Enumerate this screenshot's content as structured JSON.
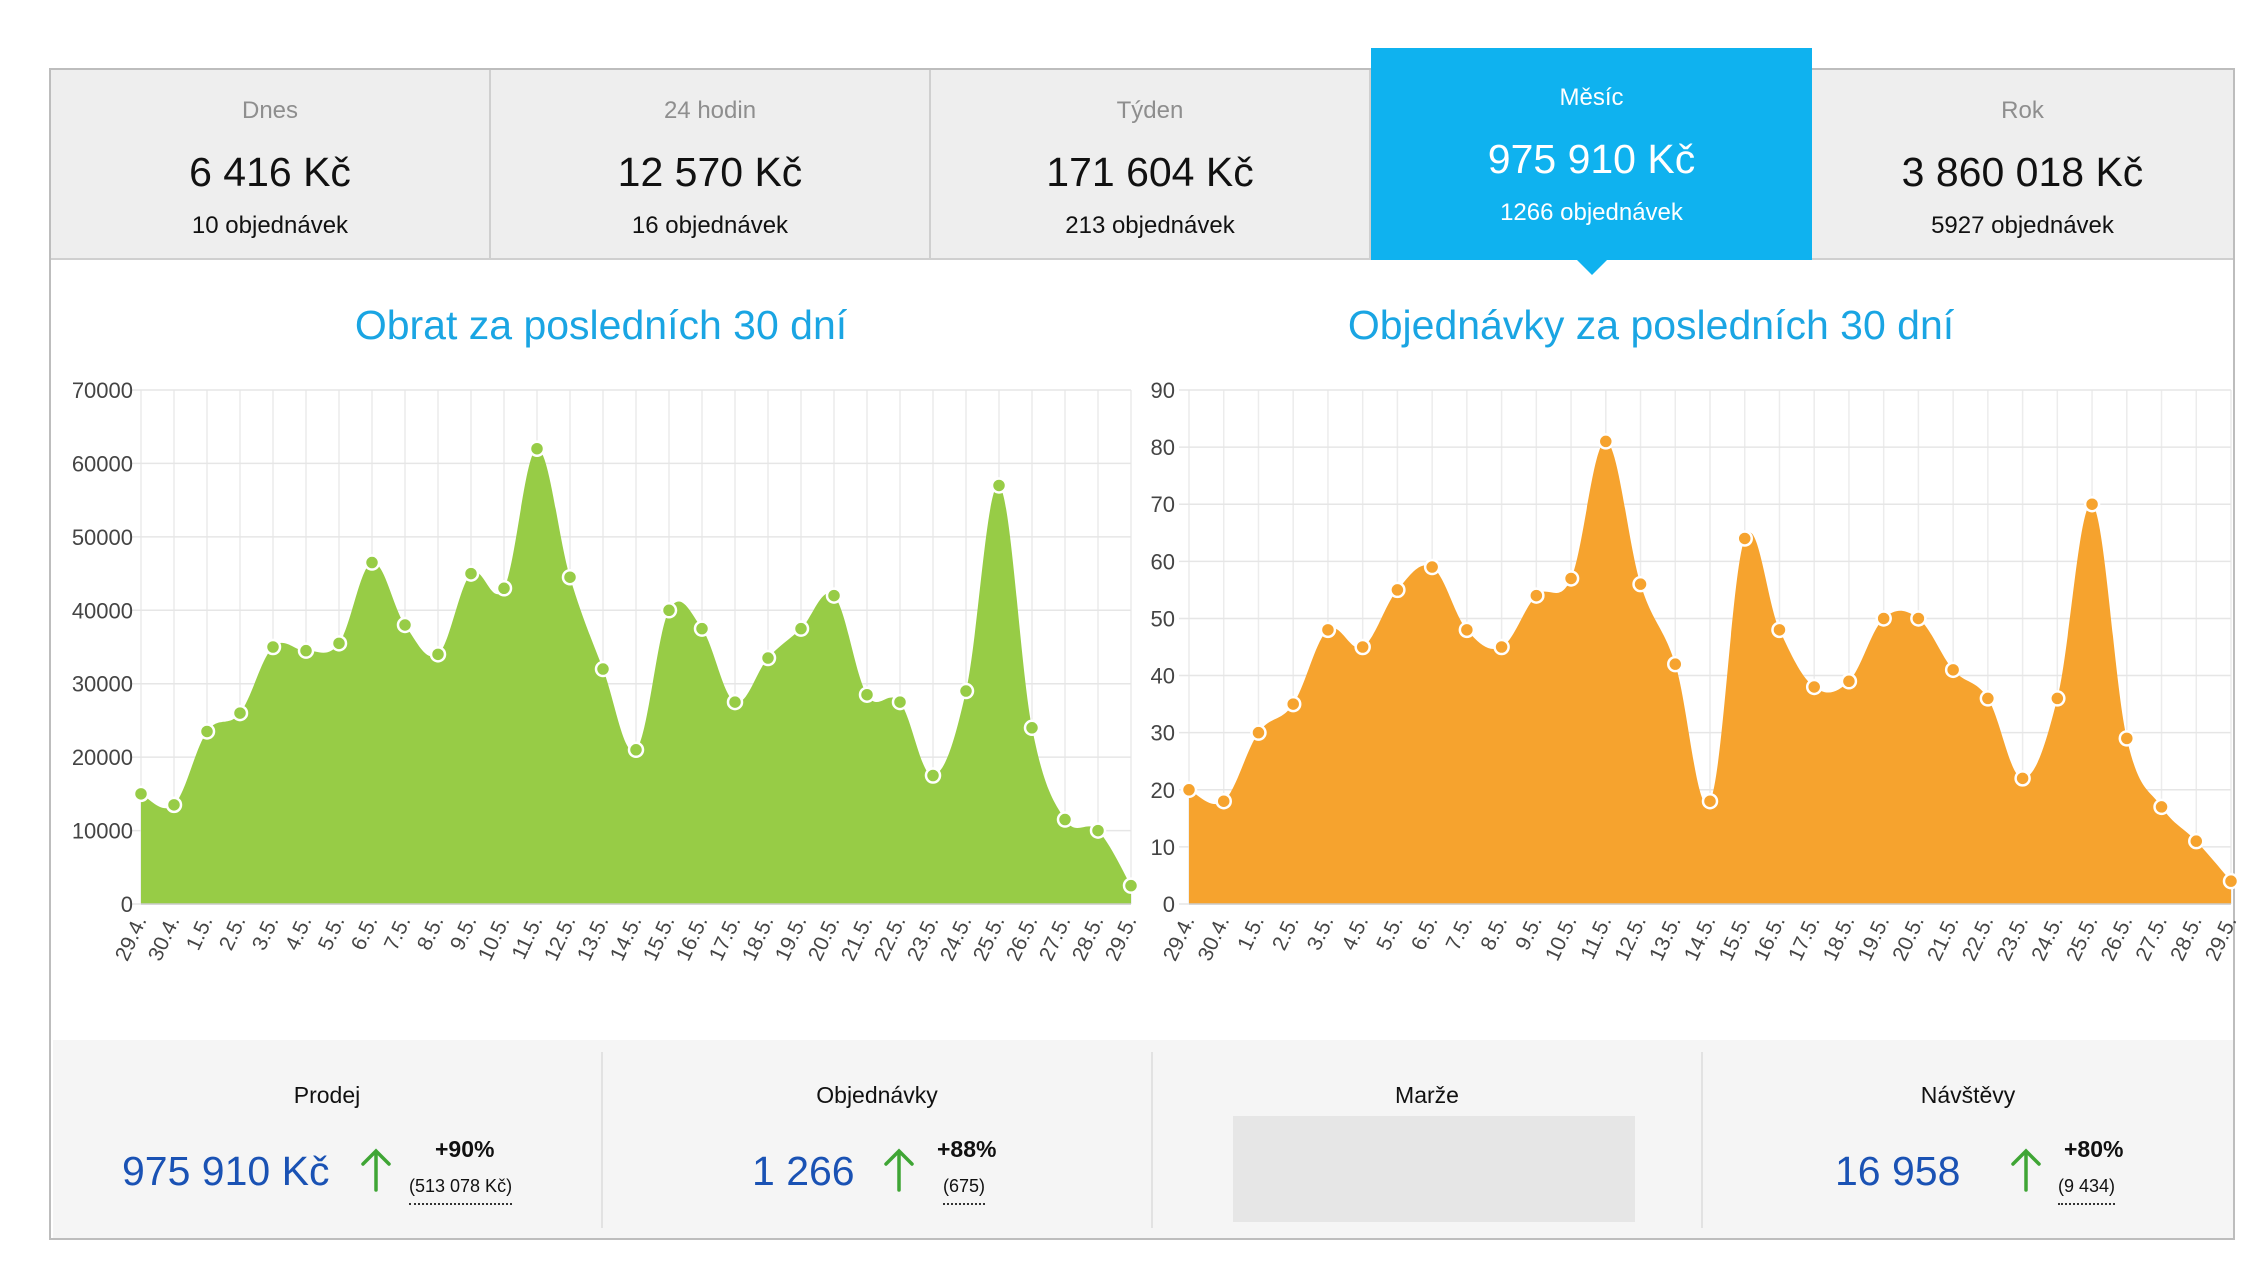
{
  "periods": [
    {
      "label": "Dnes",
      "amount": "6 416 Kč",
      "orders": "10 objednávek",
      "active": false
    },
    {
      "label": "24 hodin",
      "amount": "12 570 Kč",
      "orders": "16 objednávek",
      "active": false
    },
    {
      "label": "Týden",
      "amount": "171 604 Kč",
      "orders": "213 objednávek",
      "active": false
    },
    {
      "label": "Měsíc",
      "amount": "975 910 Kč",
      "orders": "1266 objednávek",
      "active": true
    },
    {
      "label": "Rok",
      "amount": "3 860 018 Kč",
      "orders": "5927 objednávek",
      "active": false
    }
  ],
  "chart_data": [
    {
      "type": "area",
      "title": "Obrat za posledních 30 dní",
      "color": "#97cc46",
      "ylim": [
        0,
        70000
      ],
      "yticks": [
        0,
        10000,
        20000,
        30000,
        40000,
        50000,
        60000,
        70000
      ],
      "grid": true,
      "x": [
        "29.4.",
        "30.4.",
        "1.5.",
        "2.5.",
        "3.5.",
        "4.5.",
        "5.5.",
        "6.5.",
        "7.5.",
        "8.5.",
        "9.5.",
        "10.5.",
        "11.5.",
        "12.5.",
        "13.5.",
        "14.5.",
        "15.5.",
        "16.5.",
        "17.5.",
        "18.5.",
        "19.5.",
        "20.5.",
        "21.5.",
        "22.5.",
        "23.5.",
        "24.5.",
        "25.5.",
        "26.5.",
        "27.5.",
        "28.5.",
        "29.5."
      ],
      "values": [
        15000,
        13500,
        23500,
        26000,
        35000,
        34500,
        35500,
        46500,
        38000,
        34000,
        45000,
        43000,
        62000,
        44500,
        32000,
        21000,
        40000,
        37500,
        27500,
        33500,
        37500,
        42000,
        28500,
        27500,
        17500,
        29000,
        57000,
        24000,
        11500,
        10000,
        2500
      ]
    },
    {
      "type": "area",
      "title": "Objednávky za posledních 30 dní",
      "color": "#f6a32e",
      "ylim": [
        0,
        90
      ],
      "yticks": [
        0,
        10,
        20,
        30,
        40,
        50,
        60,
        70,
        80,
        90
      ],
      "ytick_labels": [
        "0",
        "10",
        "20",
        "30",
        "40",
        "50",
        "60",
        "70",
        "80",
        "90"
      ],
      "grid": true,
      "x": [
        "29.4.",
        "30.4.",
        "1.5.",
        "2.5.",
        "3.5.",
        "4.5.",
        "5.5.",
        "6.5.",
        "7.5.",
        "8.5.",
        "9.5.",
        "10.5.",
        "11.5.",
        "12.5.",
        "13.5.",
        "14.5.",
        "15.5.",
        "16.5.",
        "17.5.",
        "18.5.",
        "19.5.",
        "20.5.",
        "21.5.",
        "22.5.",
        "23.5.",
        "24.5.",
        "25.5.",
        "26.5.",
        "27.5.",
        "28.5.",
        "29.5."
      ],
      "values": [
        20,
        18,
        30,
        35,
        48,
        45,
        55,
        59,
        48,
        45,
        54,
        57,
        81,
        56,
        42,
        18,
        64,
        48,
        38,
        39,
        50,
        50,
        41,
        36,
        22,
        36,
        70,
        29,
        17,
        11,
        4
      ]
    }
  ],
  "stats": {
    "sales": {
      "label": "Prodej",
      "value": "975 910 Kč",
      "change": "+90%",
      "previous": "(513 078 Kč)"
    },
    "orders": {
      "label": "Objednávky",
      "value": "1 266",
      "change": "+88%",
      "previous": "(675)"
    },
    "margin": {
      "label": "Marže"
    },
    "visits": {
      "label": "Návštěvy",
      "value": "16 958",
      "change": "+80%",
      "previous": "(9 434)"
    }
  },
  "icons": {
    "trend": "arrow-up-icon"
  },
  "colors": {
    "accent": "#0fb2ef",
    "value_blue": "#1a52b4",
    "trend_green": "#3fa535"
  }
}
